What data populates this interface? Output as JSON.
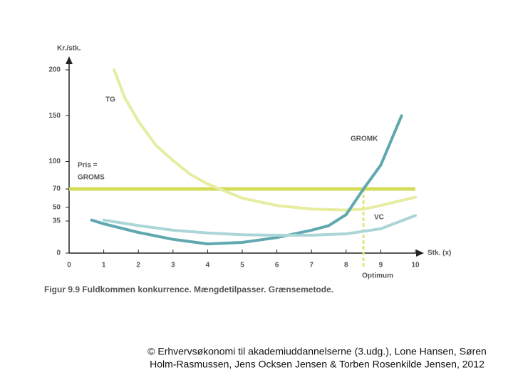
{
  "chart_data": {
    "type": "line",
    "y_label": "Kr./stk.",
    "x_label": "Stk. (x)",
    "caption": "Figur 9.9  Fuldkommen konkurrence. Mængdetilpasser. Grænsemetode.",
    "xlim": [
      0,
      10
    ],
    "xticks": [
      0,
      1,
      2,
      3,
      4,
      5,
      6,
      7,
      8,
      9,
      10
    ],
    "ylim": [
      0,
      200
    ],
    "yticks": [
      0,
      35,
      50,
      70,
      100,
      150,
      200
    ],
    "series": [
      {
        "name": "TG",
        "color": "#e6eca0",
        "x": [
          1.3,
          1.6,
          2,
          2.5,
          3,
          3.5,
          4,
          5,
          6,
          7,
          8,
          8.5,
          9,
          10
        ],
        "values": [
          200,
          170,
          144,
          118,
          101,
          86,
          75.5,
          60,
          52,
          48,
          47,
          48,
          52,
          61
        ]
      },
      {
        "name": "GROMK",
        "color": "#5fa8b0",
        "x": [
          0.65,
          1,
          2,
          3,
          4,
          5,
          6,
          7,
          7.5,
          8,
          8.5,
          9,
          9.6
        ],
        "values": [
          36,
          32,
          22.6,
          15,
          10,
          11.7,
          17,
          25,
          30,
          42,
          70,
          96,
          150
        ]
      },
      {
        "name": "VC",
        "color": "#acd5d8",
        "x": [
          1,
          2,
          3,
          4,
          5,
          6,
          7,
          8,
          9,
          10
        ],
        "values": [
          36,
          30,
          25,
          22,
          20,
          19.5,
          19.5,
          21,
          26.5,
          41
        ]
      }
    ],
    "price": {
      "value": 70,
      "color": "#d4dc5a",
      "labels": [
        "Pris =",
        "GROMS"
      ]
    },
    "optimum": {
      "x": 8.5,
      "label": "Optimum",
      "color": "#e2e67c"
    }
  },
  "footer": [
    "© Erhvervsøkonomi til akademiuddannelserne (3.udg.), Lone Hansen, Søren",
    "Holm-Rasmussen, Jens Ocksen Jensen & Torben Rosenkilde Jensen, 2012"
  ]
}
